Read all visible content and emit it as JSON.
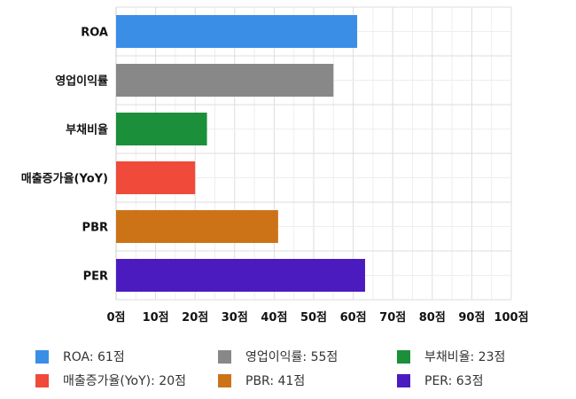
{
  "chart_data": {
    "type": "bar",
    "orientation": "horizontal",
    "categories": [
      "ROA",
      "영업이익률",
      "부채비율",
      "매출증가율(YoY)",
      "PBR",
      "PER"
    ],
    "values": [
      61,
      55,
      23,
      20,
      41,
      63
    ],
    "colors": [
      "#3a8ee6",
      "#888888",
      "#1b8f3a",
      "#ef4a3a",
      "#cc7318",
      "#4b1bbf"
    ],
    "xlim": [
      0,
      100
    ],
    "xticks": [
      "0점",
      "10점",
      "20점",
      "30점",
      "40점",
      "50점",
      "60점",
      "70점",
      "80점",
      "90점",
      "100점"
    ],
    "grid": true,
    "legend_position": "bottom",
    "legend": [
      {
        "label": "ROA: 61점",
        "color": "#3a8ee6"
      },
      {
        "label": "영업이익률: 55점",
        "color": "#888888"
      },
      {
        "label": "부채비율: 23점",
        "color": "#1b8f3a"
      },
      {
        "label": "매출증가율(YoY): 20점",
        "color": "#ef4a3a"
      },
      {
        "label": "PBR: 41점",
        "color": "#cc7318"
      },
      {
        "label": "PER: 63점",
        "color": "#4b1bbf"
      }
    ]
  }
}
